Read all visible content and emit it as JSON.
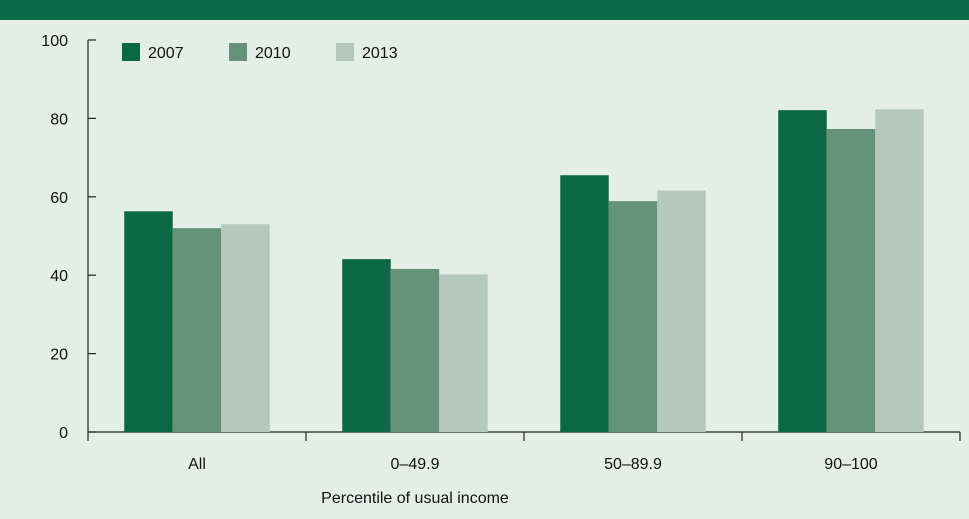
{
  "colors": {
    "background": "#e3efe6",
    "top_bar": "#0b6a49",
    "axis": "#222222"
  },
  "chart_data": {
    "type": "bar",
    "categories": [
      "All",
      "0–49.9",
      "50–89.9",
      "90–100"
    ],
    "series": [
      {
        "name": "2007",
        "color": "#0b6847",
        "values": [
          56.3,
          44.1,
          65.5,
          82.1
        ]
      },
      {
        "name": "2010",
        "color": "#64937a",
        "values": [
          52.0,
          41.6,
          58.9,
          77.3
        ]
      },
      {
        "name": "2013",
        "color": "#b6c8bc",
        "values": [
          53.0,
          40.2,
          61.6,
          82.3
        ]
      }
    ],
    "title": "",
    "xlabel": "Percentile of usual income",
    "ylabel": "",
    "ylim": [
      0,
      100
    ],
    "yticks": [
      0,
      20,
      40,
      60,
      80,
      100
    ],
    "grid": false,
    "legend_position": "top-left"
  }
}
